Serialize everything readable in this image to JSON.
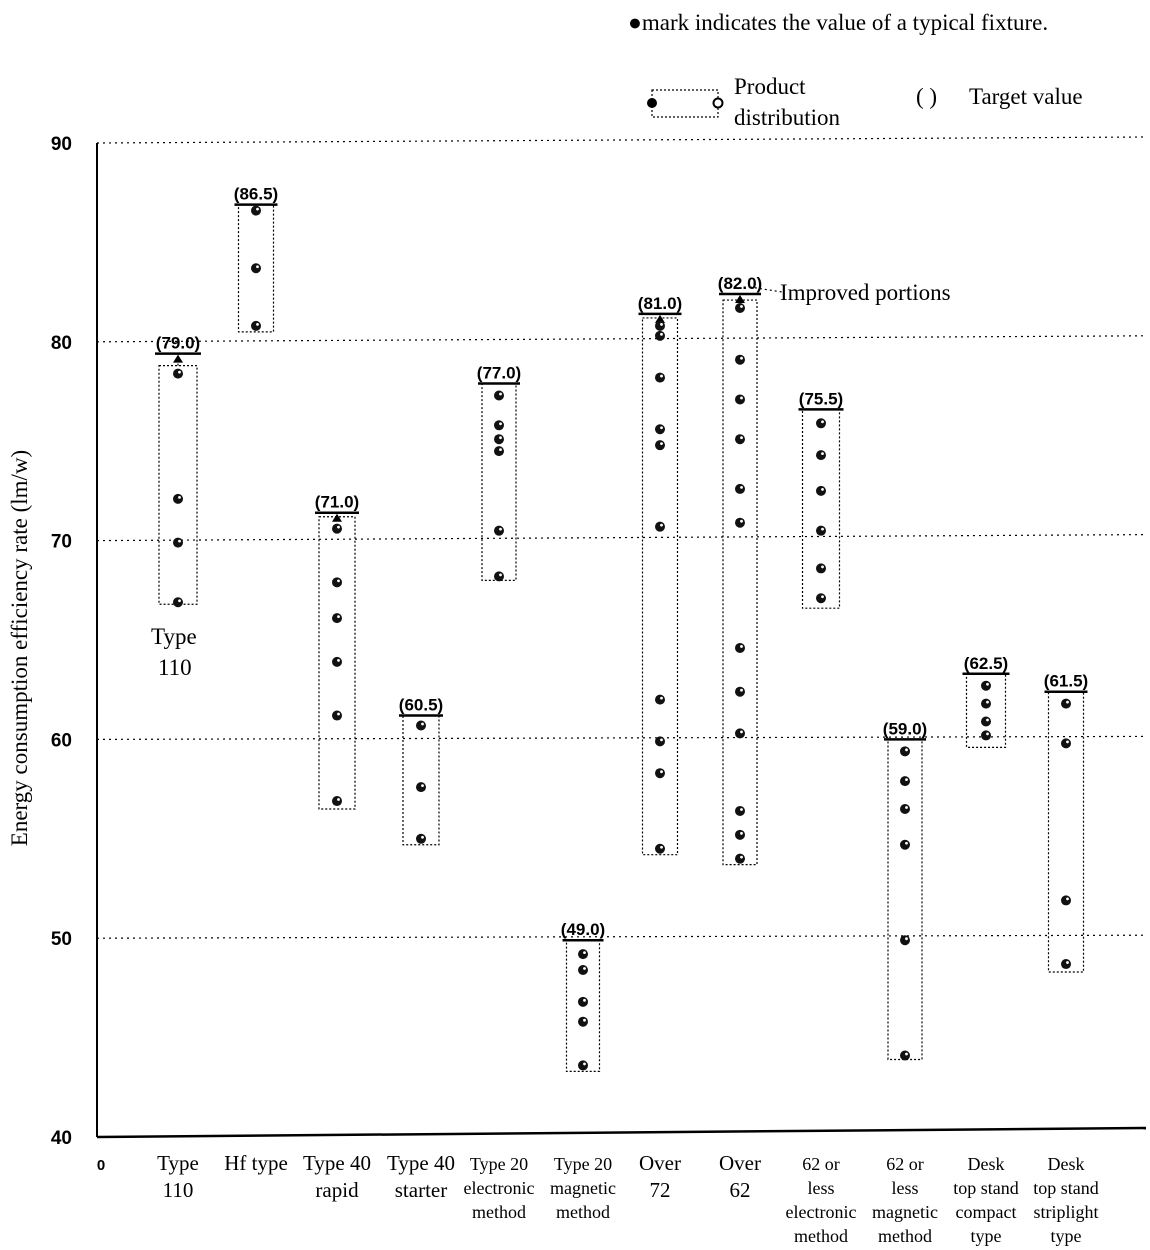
{
  "header": {
    "note_mark": "●",
    "note_text": "mark indicates the value of a typical fixture."
  },
  "legend": {
    "product_line1": "Product",
    "product_line2": "distribution",
    "target_symbol": "(   )",
    "target_label": "Target value"
  },
  "annotations": {
    "improved_portions": "Improved portions",
    "type110_line1": "Type",
    "type110_line2": "110"
  },
  "chart_data": {
    "type": "scatter",
    "ylabel": "Energy consumption efficiency rate (lm/w)",
    "ylim": [
      40,
      90
    ],
    "yticks": [
      90,
      80,
      70,
      60,
      50,
      40
    ],
    "x_origin_label": "0",
    "grid": "dotted horizontal",
    "categories": [
      {
        "label_lines": [
          "Type",
          "110"
        ],
        "range": [
          66.8,
          78.8
        ],
        "target": 79.0,
        "target_label": "(79.0)",
        "points": [
          78.4,
          72.1,
          69.9,
          66.9
        ],
        "arrow": true
      },
      {
        "label_lines": [
          "Hf type"
        ],
        "range": [
          80.5,
          86.9
        ],
        "target": 86.5,
        "target_label": "(86.5)",
        "points": [
          86.6,
          83.7,
          80.8
        ],
        "arrow": false
      },
      {
        "label_lines": [
          "Type 40",
          "rapid"
        ],
        "range": [
          56.5,
          71.2
        ],
        "target": 71.0,
        "target_label": "(71.0)",
        "points": [
          70.6,
          67.9,
          66.1,
          63.9,
          61.2,
          56.9
        ],
        "arrow": true
      },
      {
        "label_lines": [
          "Type 40",
          "starter"
        ],
        "range": [
          54.7,
          61.2
        ],
        "target": 60.5,
        "target_label": "(60.5)",
        "points": [
          60.7,
          57.6,
          55.0
        ],
        "arrow": false
      },
      {
        "label_lines": [
          "Type 20",
          "electronic",
          "method"
        ],
        "range": [
          68.0,
          77.9
        ],
        "target": 77.0,
        "target_label": "(77.0)",
        "points": [
          77.3,
          75.8,
          75.1,
          74.5,
          70.5,
          68.2
        ],
        "arrow": false
      },
      {
        "label_lines": [
          "Type 20",
          "magnetic",
          "method"
        ],
        "range": [
          43.3,
          49.9
        ],
        "target": 49.0,
        "target_label": "(49.0)",
        "points": [
          49.2,
          48.4,
          46.8,
          45.8,
          43.6
        ],
        "arrow": false
      },
      {
        "label_lines": [
          "Over",
          "72"
        ],
        "range": [
          54.2,
          81.2
        ],
        "target": 81.0,
        "target_label": "(81.0)",
        "points": [
          80.8,
          80.3,
          78.2,
          75.6,
          74.8,
          70.7,
          62.0,
          59.9,
          58.3,
          54.5
        ],
        "arrow": true
      },
      {
        "label_lines": [
          "Over",
          "62"
        ],
        "range": [
          53.7,
          82.1
        ],
        "target": 82.0,
        "target_label": "(82.0)",
        "points": [
          81.7,
          79.1,
          77.1,
          75.1,
          72.6,
          70.9,
          64.6,
          62.4,
          60.3,
          56.4,
          55.2,
          54.0
        ],
        "arrow": true
      },
      {
        "label_lines": [
          "62 or",
          "less",
          "electronic",
          "method"
        ],
        "range": [
          66.6,
          76.6
        ],
        "target": 75.5,
        "target_label": "(75.5)",
        "points": [
          75.9,
          74.3,
          72.5,
          70.5,
          68.6,
          67.1
        ],
        "arrow": false
      },
      {
        "label_lines": [
          "62 or",
          "less",
          "magnetic",
          "method"
        ],
        "range": [
          43.9,
          60.0
        ],
        "target": 59.0,
        "target_label": "(59.0)",
        "points": [
          59.4,
          57.9,
          56.5,
          54.7,
          49.9,
          44.1
        ],
        "arrow": false
      },
      {
        "label_lines": [
          "Desk",
          "top stand",
          "compact",
          "type"
        ],
        "range": [
          59.6,
          63.3
        ],
        "target": 62.5,
        "target_label": "(62.5)",
        "points": [
          62.7,
          61.8,
          60.9,
          60.2
        ],
        "arrow": false
      },
      {
        "label_lines": [
          "Desk",
          "top stand",
          "striplight",
          "type"
        ],
        "range": [
          48.3,
          62.4
        ],
        "target": 61.5,
        "target_label": "(61.5)",
        "points": [
          61.8,
          59.8,
          51.9,
          48.7
        ],
        "arrow": false
      }
    ]
  }
}
